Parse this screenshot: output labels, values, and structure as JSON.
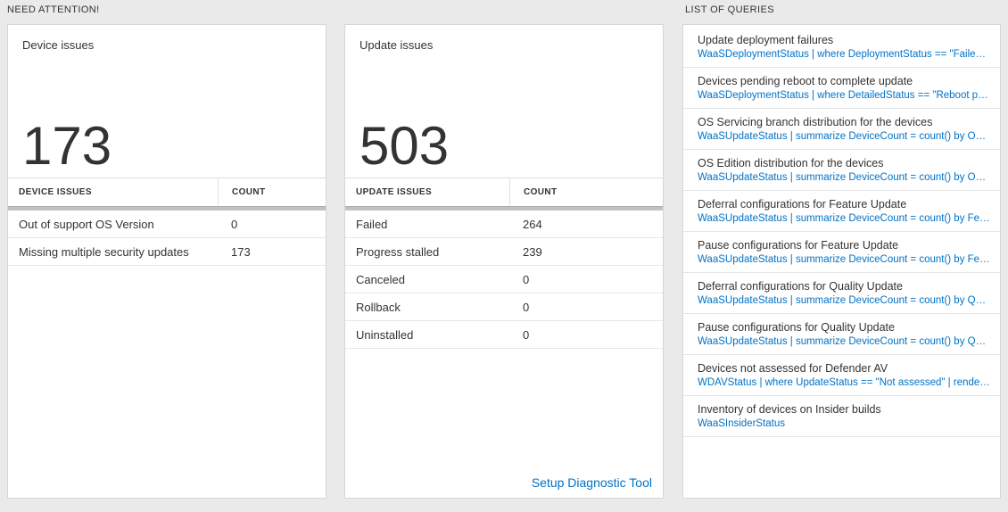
{
  "colors": {
    "accent_blue": "#0072c6",
    "page_bg": "#eaeaea"
  },
  "headers": {
    "need_attention": "NEED ATTENTION!",
    "list_of_queries": "LIST OF QUERIES"
  },
  "device_card": {
    "title": "Device issues",
    "big_count": "173",
    "columns": {
      "issue": "DEVICE ISSUES",
      "count": "COUNT"
    },
    "rows": [
      {
        "label": "Out of support OS Version",
        "count": "0"
      },
      {
        "label": "Missing multiple security updates",
        "count": "173"
      }
    ]
  },
  "update_card": {
    "title": "Update issues",
    "big_count": "503",
    "columns": {
      "issue": "UPDATE ISSUES",
      "count": "COUNT"
    },
    "rows": [
      {
        "label": "Failed",
        "count": "264"
      },
      {
        "label": "Progress stalled",
        "count": "239"
      },
      {
        "label": "Canceled",
        "count": "0"
      },
      {
        "label": "Rollback",
        "count": "0"
      },
      {
        "label": "Uninstalled",
        "count": "0"
      }
    ],
    "footer_link": "Setup Diagnostic Tool"
  },
  "queries": {
    "items": [
      {
        "title": "Update deployment failures",
        "query": "WaaSDeploymentStatus | where DeploymentStatus == \"Failed\" |..."
      },
      {
        "title": "Devices pending reboot to complete update",
        "query": "WaaSDeploymentStatus | where DetailedStatus == \"Reboot pend..."
      },
      {
        "title": "OS Servicing branch distribution for the devices",
        "query": "WaaSUpdateStatus | summarize DeviceCount = count() by OSSer..."
      },
      {
        "title": "OS Edition distribution for the devices",
        "query": "WaaSUpdateStatus | summarize DeviceCount = count() by OSEdit..."
      },
      {
        "title": "Deferral configurations for Feature Update",
        "query": "WaaSUpdateStatus | summarize DeviceCount = count() by Featur..."
      },
      {
        "title": "Pause configurations for Feature Update",
        "query": "WaaSUpdateStatus | summarize DeviceCount = count() by Featur..."
      },
      {
        "title": "Deferral configurations for Quality Update",
        "query": "WaaSUpdateStatus | summarize DeviceCount = count() by Qualit..."
      },
      {
        "title": "Pause configurations for Quality Update",
        "query": "WaaSUpdateStatus | summarize DeviceCount = count() by Qualit..."
      },
      {
        "title": "Devices not assessed for Defender AV",
        "query": "WDAVStatus | where UpdateStatus == \"Not assessed\" | render ta..."
      },
      {
        "title": "Inventory of devices on Insider builds",
        "query": "WaaSInsiderStatus"
      }
    ]
  }
}
